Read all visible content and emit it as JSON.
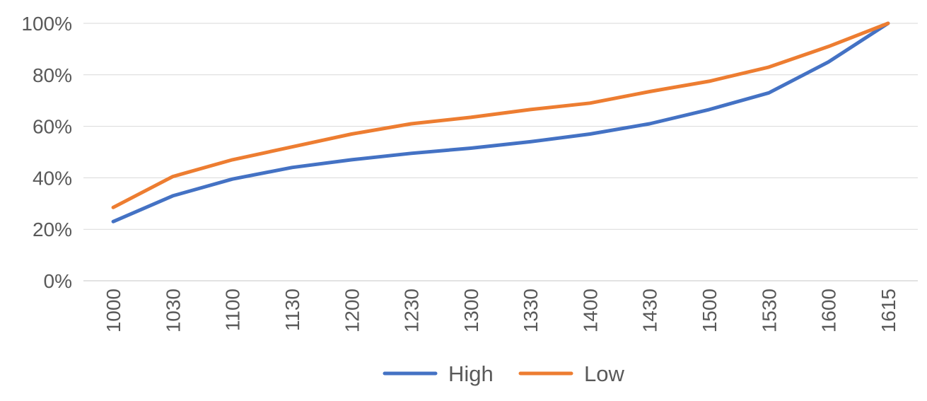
{
  "chart_data": {
    "type": "line",
    "title": "",
    "xlabel": "",
    "ylabel": "",
    "categories": [
      "1000",
      "1030",
      "1100",
      "1130",
      "1200",
      "1230",
      "1300",
      "1330",
      "1400",
      "1430",
      "1500",
      "1530",
      "1600",
      "1615"
    ],
    "series": [
      {
        "name": "High",
        "color": "#4472c4",
        "values": [
          23,
          33,
          39.5,
          44,
          47,
          49.5,
          51.5,
          54,
          57,
          61,
          66.5,
          73,
          85,
          100
        ]
      },
      {
        "name": "Low",
        "color": "#ed7d31",
        "values": [
          28.5,
          40.5,
          47,
          52,
          57,
          61,
          63.5,
          66.5,
          69,
          73.5,
          77.5,
          83,
          91,
          100
        ]
      }
    ],
    "ylim": [
      0,
      100
    ],
    "yticks": [
      0,
      20,
      40,
      60,
      80,
      100
    ],
    "ytick_labels": [
      "0%",
      "20%",
      "40%",
      "60%",
      "80%",
      "100%"
    ],
    "grid": true,
    "legend_position": "bottom"
  }
}
